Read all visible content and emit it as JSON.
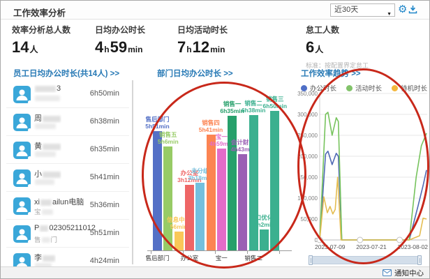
{
  "window": {
    "title": "工作效率分析",
    "range_label": "近30天",
    "notification": "通知中心"
  },
  "stats": [
    {
      "label": "效率分析总人数",
      "value": "14人"
    },
    {
      "label": "日均办公时长",
      "value": "4h59min"
    },
    {
      "label": "日均活动时长",
      "value": "7h12min"
    },
    {
      "label": "怠工人数",
      "value": "6人",
      "note": "标准：按配置界定怠工"
    }
  ],
  "panels": {
    "employees": {
      "header": "员工日均办公时长(共14人) >>",
      "rows": [
        {
          "name": [
            [
              "blur",
              30
            ],
            [
              "text",
              "3"
            ]
          ],
          "dept": [
            [
              "blur",
              36
            ]
          ],
          "time": "6h50min"
        },
        {
          "name": [
            [
              "text",
              "周"
            ],
            [
              "blur",
              26
            ]
          ],
          "dept": [
            [
              "blur",
              30
            ]
          ],
          "time": "6h38min"
        },
        {
          "name": [
            [
              "text",
              "黄"
            ],
            [
              "blur",
              26
            ]
          ],
          "dept": [
            [
              "blur",
              30
            ]
          ],
          "time": "6h35min"
        },
        {
          "name": [
            [
              "text",
              "小"
            ],
            [
              "blur",
              26
            ]
          ],
          "dept": [
            [
              "blur",
              28
            ]
          ],
          "time": "5h41min"
        },
        {
          "name": [
            [
              "text",
              "xi"
            ],
            [
              "blur",
              16
            ],
            [
              "text",
              "ailun电脑"
            ]
          ],
          "dept": [
            [
              "text",
              "宝"
            ],
            [
              "blur",
              16
            ]
          ],
          "time": "5h36min"
        },
        {
          "name": [
            [
              "text",
              "P"
            ],
            [
              "blur",
              12
            ],
            [
              "text",
              "02305211012"
            ]
          ],
          "dept": [
            [
              "text",
              "售"
            ],
            [
              "blur",
              12
            ],
            [
              "text",
              "门"
            ]
          ],
          "time": "5h51min"
        },
        {
          "name": [
            [
              "text",
              "李"
            ],
            [
              "blur",
              18
            ]
          ],
          "dept": [
            [
              "blur",
              24
            ]
          ],
          "time": "4h24min"
        }
      ]
    },
    "departments": {
      "header": "部门日均办公时长 >>"
    },
    "trend": {
      "header": "工作效率趋势 >>"
    }
  },
  "chart_data": [
    {
      "type": "bar",
      "title": "部门日均办公时长",
      "categories": [
        "售后部门",
        "销售五",
        "信息中心",
        "办公室",
        "未分组",
        "销售四",
        "宝一",
        "销售一",
        "会计财务",
        "销售二",
        "口优化",
        "销售三"
      ],
      "values_minutes": [
        351,
        306,
        56,
        192,
        198,
        341,
        299,
        395,
        283,
        398,
        62,
        410
      ],
      "labels": [
        "5h51min",
        "5h6min",
        "56min",
        "3h12min",
        "3h18min",
        "5h41min",
        "4h59min",
        "6h35min",
        "4h43min",
        "6h38min",
        "1h2min",
        "6h50min"
      ],
      "bar_colors": [
        "#5470c6",
        "#97cb66",
        "#fac858",
        "#ee6666",
        "#73c0de",
        "#fc8452",
        "#e36cc8",
        "#27a06b",
        "#9a60b4",
        "#3bb08f",
        "#3bb08f",
        "#3bb08f"
      ],
      "x_ticks_shown": [
        "售后部门",
        "办公室",
        "宝一",
        "销售二"
      ],
      "x_ticks_index": [
        0,
        3,
        6,
        9
      ],
      "ylim_minutes": [
        0,
        430
      ]
    },
    {
      "type": "line",
      "title": "工作效率趋势",
      "legend": [
        "办公时长",
        "活动时长",
        "待机时长"
      ],
      "legend_position": "top",
      "x_unit": "date",
      "x_start": "2023-07-06",
      "x_ticks": [
        "2023-07-09",
        "2023-07-21",
        "2023-08-02"
      ],
      "x_tick_day_offsets": [
        3,
        15,
        27
      ],
      "y_ticks": [
        "350,000",
        "300,000",
        "250,000",
        "200,000",
        "150,000",
        "100,000",
        "50,000",
        "0"
      ],
      "ylim": [
        0,
        350000
      ],
      "grid": true,
      "zero_marker_day_offsets": [
        0,
        11.7,
        23.2
      ],
      "series": [
        {
          "name": "办公时长",
          "color": "#4f69b5",
          "points": [
            [
              0,
              0
            ],
            [
              1.7,
              205000
            ],
            [
              2.4,
              212000
            ],
            [
              3.6,
              180000
            ],
            [
              4.8,
              207000
            ],
            [
              5.4,
              200000
            ],
            [
              6.4,
              0
            ],
            [
              26,
              0
            ],
            [
              28.5,
              80000
            ],
            [
              30,
              130000
            ],
            [
              31,
              167000
            ]
          ]
        },
        {
          "name": "活动时长",
          "color": "#76c35c",
          "points": [
            [
              0,
              0
            ],
            [
              1.7,
              300000
            ],
            [
              2.4,
              305000
            ],
            [
              3.6,
              250000
            ],
            [
              4.8,
              292000
            ],
            [
              5.4,
              283000
            ],
            [
              6.4,
              0
            ],
            [
              26,
              0
            ],
            [
              28,
              150000
            ],
            [
              29.5,
              225000
            ],
            [
              31,
              255000
            ]
          ]
        },
        {
          "name": "待机时长",
          "color": "#e4bd51",
          "points": [
            [
              0,
              0
            ],
            [
              1.2,
              103000
            ],
            [
              2.2,
              65000
            ],
            [
              3,
              80000
            ],
            [
              3.8,
              62000
            ],
            [
              4.5,
              73000
            ],
            [
              5.2,
              150000
            ],
            [
              6.2,
              0
            ],
            [
              26,
              0
            ],
            [
              29,
              10000
            ],
            [
              30,
              52000
            ],
            [
              31,
              50000
            ]
          ]
        }
      ]
    }
  ],
  "annotations": {
    "color": "#c8281a",
    "shapes": [
      "ellipse-over-department-chart",
      "ellipse-over-trend-chart"
    ]
  },
  "icons": {
    "gear": "gear-icon",
    "download": "download-icon",
    "caret": "chevron-down-icon",
    "envelope": "envelope-icon",
    "avatar": "user-avatar-icon"
  }
}
